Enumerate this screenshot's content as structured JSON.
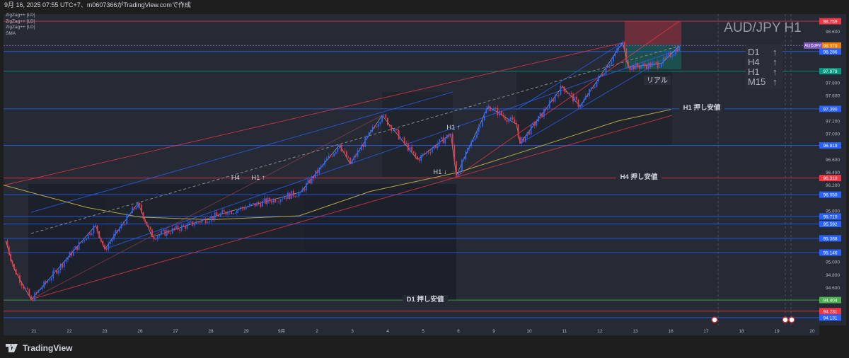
{
  "header": {
    "caption": "9月 16, 2025 07:55 UTC+7、m0607366がTradingView.comで作成"
  },
  "legend": [
    "ZigZag++ [LD]",
    "ZigZag++ [LD]",
    "ZigZag++ [LD]",
    "SMA"
  ],
  "title": "AUD/JPY H1",
  "trend_box": [
    {
      "tf": "D1",
      "arrow": "↑"
    },
    {
      "tf": "H4",
      "arrow": "↑"
    },
    {
      "tf": "H1",
      "arrow": "↑"
    },
    {
      "tf": "M15",
      "arrow": "↑"
    }
  ],
  "symbol_tag": "AUDJPY",
  "annotations": {
    "h4": "H4",
    "h1_up_left": "H1 ↑",
    "h1_up_mid": "H1 ↑",
    "h1_down": "H1 ↓",
    "real": "リアル",
    "h1_support": "H1 押し安値",
    "h4_support": "H4 押し安値",
    "d1_support": "D1 押し安値"
  },
  "footer": {
    "brand": "TradingView"
  },
  "colors": {
    "bg": "#252a35",
    "up": "#2962ff",
    "down": "#f23645",
    "sma": "#b5a642",
    "red": "#f23645",
    "blue": "#2962ff",
    "green": "#4caf50",
    "orange": "#f57c00",
    "purple": "#7e57c2",
    "teal": "#089981"
  },
  "chart_data": {
    "type": "candlestick",
    "symbol": "AUD/JPY",
    "timeframe": "H1",
    "x_ticks": [
      "21",
      "22",
      "23",
      "26",
      "27",
      "28",
      "29",
      "9月",
      "2",
      "3",
      "4",
      "5",
      "6",
      "9",
      "10",
      "11",
      "12",
      "13",
      "16",
      "17",
      "18",
      "19",
      "20"
    ],
    "y_ticks": [
      "98.600",
      "97.800",
      "97.600",
      "97.200",
      "97.000",
      "96.600",
      "96.400",
      "96.200",
      "95.800",
      "95.000",
      "94.800",
      "94.600"
    ],
    "ylim": [
      94.0,
      98.92
    ],
    "pivots": [
      [
        -0.8,
        95.33
      ],
      [
        -0.56,
        94.89
      ],
      [
        -0.08,
        94.41
      ],
      [
        1.74,
        95.57
      ],
      [
        2.0,
        95.2
      ],
      [
        2.94,
        95.92
      ],
      [
        3.34,
        95.39
      ],
      [
        5.48,
        95.78
      ],
      [
        7.54,
        96.09
      ],
      [
        8.64,
        96.83
      ],
      [
        8.94,
        96.53
      ],
      [
        9.84,
        97.29
      ],
      [
        10.84,
        96.6
      ],
      [
        11.78,
        97.0
      ],
      [
        11.94,
        96.35
      ],
      [
        12.84,
        97.43
      ],
      [
        13.64,
        97.15
      ],
      [
        13.74,
        96.85
      ],
      [
        14.94,
        97.74
      ],
      [
        15.44,
        97.43
      ],
      [
        16.64,
        98.43
      ],
      [
        16.8,
        98.04
      ],
      [
        17.74,
        98.1
      ],
      [
        18.24,
        98.37
      ]
    ],
    "sma": [
      [
        -0.86,
        96.2
      ],
      [
        1.5,
        95.85
      ],
      [
        3,
        95.7
      ],
      [
        5,
        95.66
      ],
      [
        7.5,
        95.72
      ],
      [
        9.5,
        96.1
      ],
      [
        12,
        96.4
      ],
      [
        14.5,
        96.84
      ],
      [
        16.5,
        97.2
      ],
      [
        18.0,
        97.38
      ]
    ],
    "levels": [
      {
        "price": 98.759,
        "label": "98.759",
        "color": "red"
      },
      {
        "price": 98.379,
        "label": "98.379",
        "color": "orange"
      },
      {
        "price": 98.286,
        "label": "98.286",
        "color": "blue"
      },
      {
        "price": 97.979,
        "label": "97.979",
        "color": "teal"
      },
      {
        "price": 97.39,
        "label": "97.390",
        "color": "blue"
      },
      {
        "price": 96.819,
        "label": "96.819",
        "color": "blue"
      },
      {
        "price": 96.31,
        "label": "96.310",
        "color": "red"
      },
      {
        "price": 96.05,
        "label": "96.050",
        "color": "blue"
      },
      {
        "price": 95.71,
        "label": "95.710",
        "color": "blue"
      },
      {
        "price": 95.592,
        "label": "95.592",
        "color": "blue"
      },
      {
        "price": 95.368,
        "label": "95.368",
        "color": "blue"
      },
      {
        "price": 95.146,
        "label": "95.146",
        "color": "blue"
      },
      {
        "price": 94.404,
        "label": "94.404",
        "color": "green"
      },
      {
        "price": 94.231,
        "label": "94.231",
        "color": "red"
      },
      {
        "price": 94.131,
        "label": "94.131",
        "color": "blue"
      }
    ]
  }
}
